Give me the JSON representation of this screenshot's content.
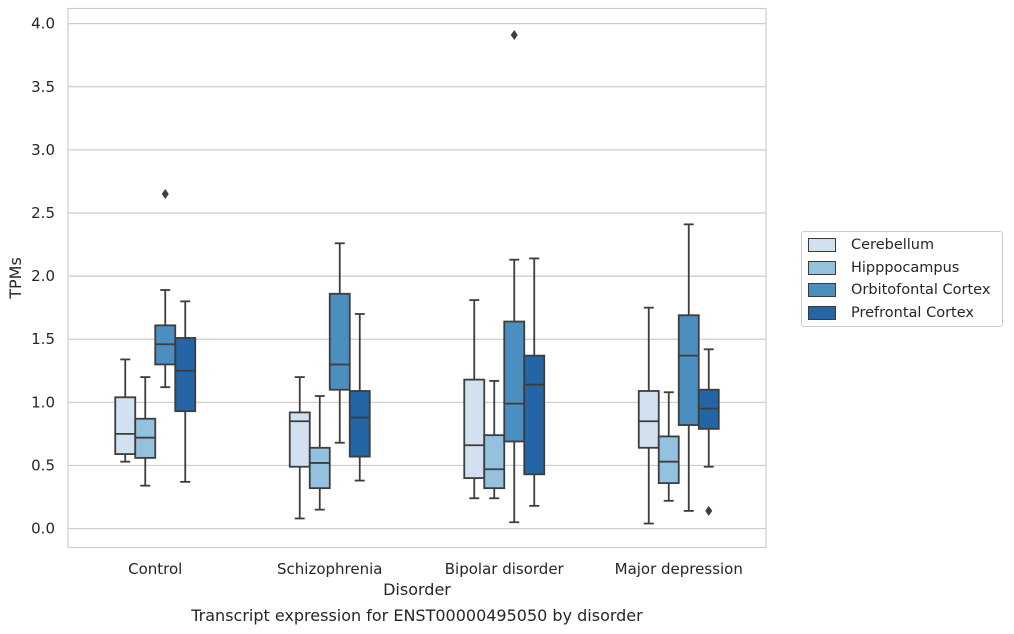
{
  "chart_data": {
    "type": "box",
    "xlabel": "Disorder",
    "ylabel": "TPMs",
    "caption": "Transcript expression for ENST00000495050 by disorder",
    "ylim": [
      -0.15,
      4.12
    ],
    "yticks": [
      "0.0",
      "0.5",
      "1.0",
      "1.5",
      "2.0",
      "2.5",
      "3.0",
      "3.5",
      "4.0"
    ],
    "grid": "horizontal",
    "legend_position": "right",
    "categories": [
      "Control",
      "Schizophrenia",
      "Bipolar disorder",
      "Major depression"
    ],
    "series": [
      {
        "name": "Cerebellum",
        "color": "#d1e1f0",
        "boxes": [
          {
            "whislo": 0.53,
            "q1": 0.59,
            "med": 0.75,
            "q3": 1.04,
            "whishi": 1.34,
            "fliers": []
          },
          {
            "whislo": 0.08,
            "q1": 0.49,
            "med": 0.85,
            "q3": 0.92,
            "whishi": 1.2,
            "fliers": []
          },
          {
            "whislo": 0.24,
            "q1": 0.4,
            "med": 0.66,
            "q3": 1.18,
            "whishi": 1.81,
            "fliers": []
          },
          {
            "whislo": 0.04,
            "q1": 0.64,
            "med": 0.85,
            "q3": 1.09,
            "whishi": 1.75,
            "fliers": []
          }
        ]
      },
      {
        "name": "Hipppocampus",
        "color": "#94c1dd",
        "boxes": [
          {
            "whislo": 0.34,
            "q1": 0.56,
            "med": 0.72,
            "q3": 0.87,
            "whishi": 1.2,
            "fliers": []
          },
          {
            "whislo": 0.15,
            "q1": 0.32,
            "med": 0.52,
            "q3": 0.64,
            "whishi": 1.05,
            "fliers": []
          },
          {
            "whislo": 0.24,
            "q1": 0.32,
            "med": 0.47,
            "q3": 0.74,
            "whishi": 1.17,
            "fliers": []
          },
          {
            "whislo": 0.22,
            "q1": 0.36,
            "med": 0.53,
            "q3": 0.73,
            "whishi": 1.08,
            "fliers": []
          }
        ]
      },
      {
        "name": "Orbitofontal Cortex",
        "color": "#4b8fc1",
        "boxes": [
          {
            "whislo": 1.12,
            "q1": 1.3,
            "med": 1.46,
            "q3": 1.61,
            "whishi": 1.89,
            "fliers": [
              2.65
            ]
          },
          {
            "whislo": 0.68,
            "q1": 1.1,
            "med": 1.3,
            "q3": 1.86,
            "whishi": 2.26,
            "fliers": []
          },
          {
            "whislo": 0.05,
            "q1": 0.69,
            "med": 0.99,
            "q3": 1.64,
            "whishi": 2.13,
            "fliers": [
              3.91
            ]
          },
          {
            "whislo": 0.14,
            "q1": 0.82,
            "med": 1.37,
            "q3": 1.69,
            "whishi": 2.41,
            "fliers": []
          }
        ]
      },
      {
        "name": "Prefrontal Cortex",
        "color": "#2365a5",
        "boxes": [
          {
            "whislo": 0.37,
            "q1": 0.93,
            "med": 1.25,
            "q3": 1.51,
            "whishi": 1.8,
            "fliers": []
          },
          {
            "whislo": 0.38,
            "q1": 0.57,
            "med": 0.88,
            "q3": 1.09,
            "whishi": 1.7,
            "fliers": []
          },
          {
            "whislo": 0.18,
            "q1": 0.43,
            "med": 1.14,
            "q3": 1.37,
            "whishi": 2.14,
            "fliers": []
          },
          {
            "whislo": 0.49,
            "q1": 0.79,
            "med": 0.95,
            "q3": 1.1,
            "whishi": 1.42,
            "fliers": [
              0.14
            ]
          }
        ]
      }
    ]
  }
}
